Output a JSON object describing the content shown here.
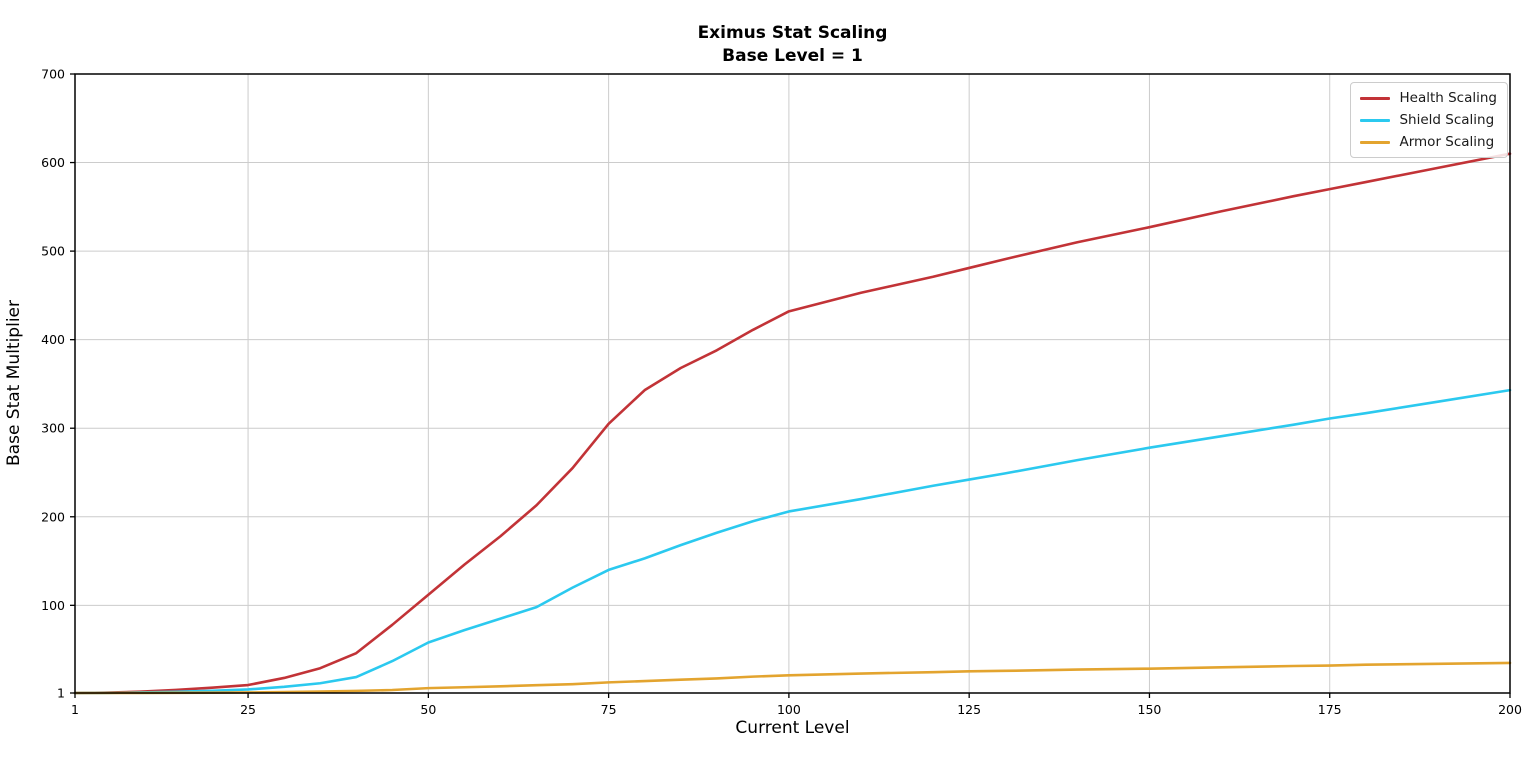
{
  "chart_data": {
    "type": "line",
    "title": "Eximus Stat Scaling",
    "subtitle": "Base Level = 1",
    "xlabel": "Current Level",
    "ylabel": "Base Stat Multiplier",
    "xlim": [
      1,
      200
    ],
    "ylim": [
      1,
      700
    ],
    "xticks": [
      1,
      25,
      50,
      75,
      100,
      125,
      150,
      175,
      200
    ],
    "yticks": [
      1,
      100,
      200,
      300,
      400,
      500,
      600,
      700
    ],
    "grid": true,
    "legend_position": "upper right",
    "x": [
      1,
      5,
      10,
      15,
      20,
      25,
      30,
      35,
      40,
      45,
      50,
      55,
      60,
      65,
      70,
      75,
      80,
      85,
      90,
      95,
      100,
      110,
      120,
      125,
      130,
      140,
      150,
      160,
      170,
      175,
      180,
      190,
      200
    ],
    "series": [
      {
        "name": "Health Scaling",
        "color": "#c23337",
        "values": [
          1,
          1.3,
          2.5,
          4.5,
          7,
          10,
          18,
          29,
          46,
          78,
          112,
          146,
          178,
          213,
          255,
          305,
          343,
          368,
          388,
          411,
          432,
          453,
          471,
          481,
          491,
          510,
          527,
          545,
          562,
          570,
          578,
          594,
          610
        ]
      },
      {
        "name": "Shield Scaling",
        "color": "#2bc9ef",
        "values": [
          1,
          1.1,
          1.6,
          2.4,
          3.5,
          5,
          8,
          12,
          19,
          37,
          58,
          72,
          85,
          98,
          120,
          140,
          153,
          168,
          182,
          195,
          206,
          220,
          235,
          242,
          249,
          264,
          278,
          291,
          304,
          311,
          317,
          330,
          343
        ]
      },
      {
        "name": "Armor Scaling",
        "color": "#e3a42f",
        "values": [
          1,
          1,
          1.1,
          1.2,
          1.4,
          1.6,
          2.1,
          2.7,
          3.4,
          4.4,
          6.5,
          7.5,
          8.6,
          9.8,
          11,
          13,
          14.5,
          16,
          17.5,
          19.5,
          21,
          23,
          24.5,
          25.5,
          26,
          27.5,
          28.5,
          30,
          31.5,
          32,
          33,
          34,
          35
        ]
      }
    ],
    "colors": {
      "grid": "#cccccc",
      "spine": "#000000",
      "background": "#ffffff",
      "tick_label": "#000000"
    }
  }
}
